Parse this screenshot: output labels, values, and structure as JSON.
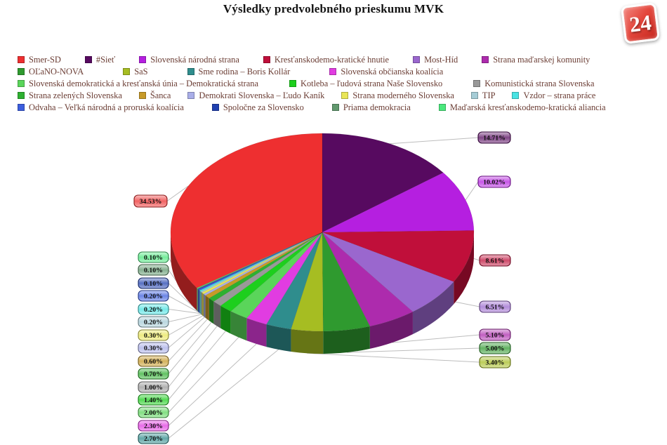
{
  "page": {
    "title": "Výsledky predvolebného prieskumu MVK",
    "logo_text": "24"
  },
  "chart_data": {
    "type": "pie",
    "style": "3d pie with callout value labels",
    "title": "Výsledky predvolebného prieskumu MVK",
    "unit": "%",
    "legend_position": "top",
    "series": [
      {
        "name": "Smer-SD",
        "value": 34.53,
        "color": "#ee2f30"
      },
      {
        "name": "#Sieť",
        "value": 14.71,
        "color": "#570a60"
      },
      {
        "name": "Slovenská národná strana",
        "value": 10.02,
        "color": "#b51fe0"
      },
      {
        "name": "Kresťanskodemo-kratické hnutie",
        "value": 8.61,
        "color": "#c00f3a"
      },
      {
        "name": "Most-Híd",
        "value": 6.51,
        "color": "#9a67ce"
      },
      {
        "name": "Strana maďarskej komunity",
        "value": 5.1,
        "color": "#ad2bad"
      },
      {
        "name": "OĽaNO-NOVA",
        "value": 5.0,
        "color": "#2f9a2f"
      },
      {
        "name": "SaS",
        "value": 3.4,
        "color": "#a6bd22"
      },
      {
        "name": "Sme rodina – Boris Kollár",
        "value": 2.7,
        "color": "#2f8d8d"
      },
      {
        "name": "Slovenská občianska koalícia",
        "value": 2.3,
        "color": "#e13ce1"
      },
      {
        "name": "Slovenská demokratická a kresťanská únia – Demokratická strana",
        "value": 2.0,
        "color": "#5ad55a"
      },
      {
        "name": "Kotleba – ľudová strana Naše Slovensko",
        "value": 1.4,
        "color": "#1dcf1d"
      },
      {
        "name": "Komunistická strana Slovenska",
        "value": 1.0,
        "color": "#999999"
      },
      {
        "name": "Strana zelených Slovenska",
        "value": 0.7,
        "color": "#2eb030"
      },
      {
        "name": "Šanca",
        "value": 0.6,
        "color": "#c79a28"
      },
      {
        "name": "Demokrati Slovenska – Ľudo Kaník",
        "value": 0.3,
        "color": "#a9aee8"
      },
      {
        "name": "Strana moderného Slovenska",
        "value": 0.3,
        "color": "#e9e657"
      },
      {
        "name": "TIP",
        "value": 0.2,
        "color": "#a5ccd6"
      },
      {
        "name": "Vzdor – strana práce",
        "value": 0.2,
        "color": "#49e3e3"
      },
      {
        "name": "Odvaha – Veľká národná a proruská koalícia",
        "value": 0.2,
        "color": "#3c5ede"
      },
      {
        "name": "Spoločne za Slovensko",
        "value": 0.1,
        "color": "#2041b0"
      },
      {
        "name": "Priama demokracia",
        "value": 0.1,
        "color": "#61996e"
      },
      {
        "name": "Maďarská kresťanskodemo-kratická aliancia",
        "value": 0.1,
        "color": "#4ae87c"
      }
    ],
    "legend_rows": [
      [
        0,
        1,
        2,
        3,
        4,
        5
      ],
      [
        6,
        7,
        8,
        9
      ],
      [
        10,
        11,
        12
      ],
      [
        13,
        14,
        15,
        16,
        17,
        18
      ],
      [
        19,
        20,
        21,
        22
      ]
    ]
  }
}
